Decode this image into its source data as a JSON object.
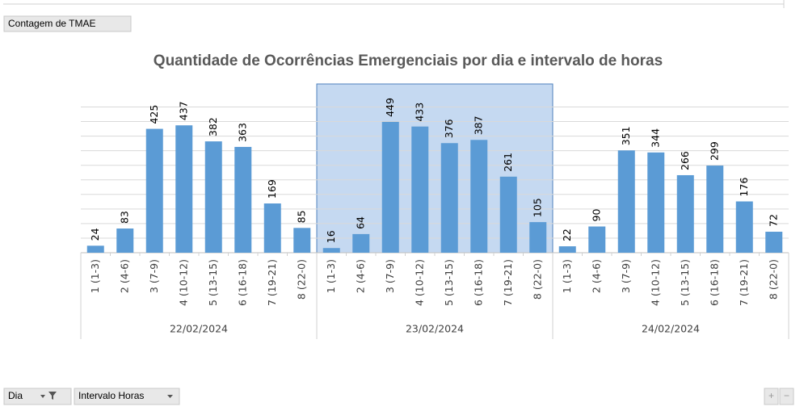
{
  "ui": {
    "field_button": "Contagem de TMAE",
    "filter_buttons": [
      "Dia",
      "Intervalo Horas"
    ],
    "zoom_buttons": [
      "+",
      "−"
    ]
  },
  "chart_data": {
    "type": "grouped-bar",
    "title": "Quantidade de Ocorrências Emergenciais por dia e intervalo de horas",
    "categories": [
      "1 (1-3)",
      "2 (4-6)",
      "3 (7-9)",
      "4 (10-12)",
      "5 (13-15)",
      "6 (16-18)",
      "7 (19-21)",
      "8 (22-0)"
    ],
    "groups": [
      {
        "label": "22/02/2024",
        "values": [
          24,
          83,
          425,
          437,
          382,
          363,
          169,
          85
        ]
      },
      {
        "label": "23/02/2024",
        "values": [
          16,
          64,
          449,
          433,
          376,
          387,
          261,
          105
        ]
      },
      {
        "label": "24/02/2024",
        "values": [
          22,
          90,
          351,
          344,
          266,
          299,
          176,
          72
        ]
      }
    ],
    "color": "#5b9bd5",
    "selected_group": 1,
    "ylim": [
      0,
      500
    ],
    "yticks": [
      0,
      50,
      100,
      150,
      200,
      250,
      300,
      350,
      400,
      450,
      500
    ],
    "grid": true
  }
}
